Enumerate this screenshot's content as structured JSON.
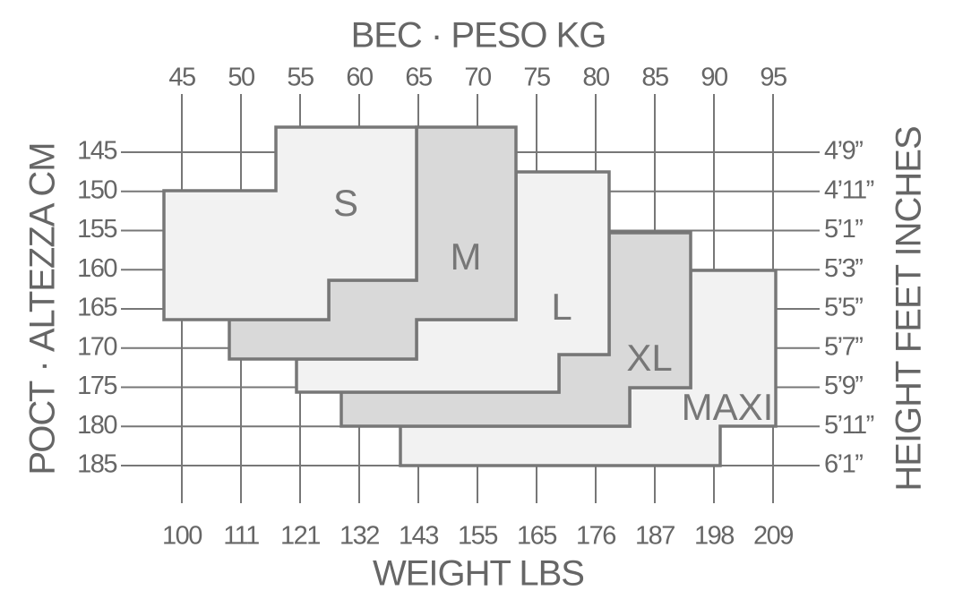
{
  "top_title": "ВЕС · PESO KG",
  "kg_ticks": [
    "45",
    "50",
    "55",
    "60",
    "65",
    "70",
    "75",
    "80",
    "85",
    "90",
    "95"
  ],
  "lbs_ticks": [
    "100",
    "111",
    "121",
    "132",
    "143",
    "155",
    "165",
    "176",
    "187",
    "198",
    "209"
  ],
  "bottom_title": "WEIGHT LBS",
  "cm_ticks": [
    "145",
    "150",
    "155",
    "160",
    "165",
    "170",
    "175",
    "180",
    "185"
  ],
  "feet_ticks": [
    "4’9”",
    "4’11”",
    "5’1”",
    "5’3”",
    "5’5”",
    "5’7”",
    "5’9”",
    "5’11”",
    "6’1”"
  ],
  "left_title": "РОСТ · ALTEZZA CM",
  "right_title": "HEIGHT FEET INCHES",
  "sizes": [
    "S",
    "M",
    "L",
    "XL",
    "MAXI"
  ]
}
